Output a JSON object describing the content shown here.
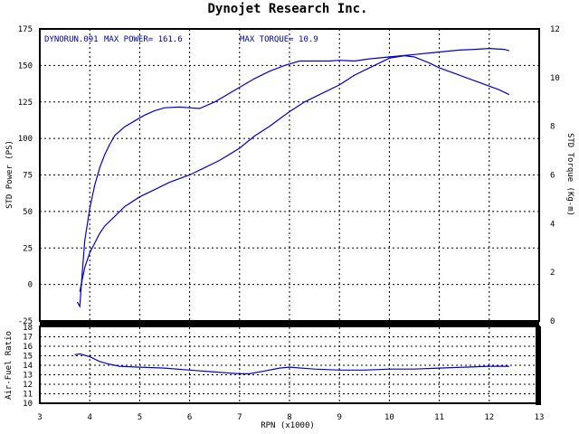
{
  "title": "Dynojet  Research  Inc.",
  "header": {
    "run": "DYNORUN.091",
    "max_power": "MAX POWER= 161.6",
    "max_torque": "MAX TORQUE= 10.9"
  },
  "colors": {
    "curve": "#0000cc",
    "axes": "#000000",
    "grid": "#000000"
  },
  "chart_data": [
    {
      "type": "line",
      "title": "Dynojet  Research  Inc.",
      "xlabel": "RPN (x1000)",
      "xlim": [
        3,
        13
      ],
      "xticks": [
        3,
        4,
        5,
        6,
        7,
        8,
        9,
        10,
        11,
        12,
        13
      ],
      "ylabel": "STD Power (PS)",
      "ylim": [
        -25,
        175
      ],
      "yticks": [
        -25,
        0,
        25,
        50,
        75,
        100,
        125,
        150,
        175
      ],
      "y2label": "STD Torque (Kg-m)",
      "y2lim": [
        0,
        12
      ],
      "y2ticks": [
        0,
        2,
        4,
        6,
        8,
        10,
        12
      ],
      "grid": true,
      "series": [
        {
          "axis": "left",
          "x": [
            3.75,
            3.8,
            3.85,
            3.9,
            4.0,
            4.1,
            4.2,
            4.3,
            4.4,
            4.5,
            4.7,
            4.9,
            5.1,
            5.3,
            5.5,
            5.8,
            6.0,
            6.2,
            6.5,
            6.8,
            7.0,
            7.3,
            7.6,
            7.9,
            8.2,
            8.5,
            8.8,
            9.0,
            9.3,
            9.6,
            9.9,
            10.2,
            10.5,
            10.8,
            11.1,
            11.4,
            11.7,
            12.0,
            12.3,
            12.4
          ],
          "y": [
            -12,
            -15,
            8,
            30,
            52,
            68,
            80,
            89,
            96,
            102,
            108,
            112,
            116,
            119,
            121,
            121.5,
            121,
            120.5,
            125,
            131,
            135,
            141,
            146,
            150,
            153,
            153,
            153,
            153.5,
            153,
            154.5,
            155.5,
            156.5,
            157.5,
            158.5,
            159.5,
            160.5,
            161,
            161.6,
            161,
            160
          ]
        },
        {
          "axis": "right",
          "x": [
            3.8,
            3.85,
            3.9,
            4.0,
            4.1,
            4.2,
            4.3,
            4.5,
            4.7,
            5.0,
            5.3,
            5.6,
            6.0,
            6.3,
            6.6,
            7.0,
            7.3,
            7.6,
            8.0,
            8.3,
            8.6,
            9.0,
            9.3,
            9.6,
            10.0,
            10.3,
            10.5,
            10.8,
            11.0,
            11.4,
            11.8,
            12.2,
            12.4
          ],
          "y": [
            1.2,
            1.7,
            2.2,
            2.8,
            3.2,
            3.6,
            3.9,
            4.3,
            4.7,
            5.1,
            5.4,
            5.7,
            6.0,
            6.3,
            6.6,
            7.1,
            7.6,
            8.0,
            8.6,
            9.0,
            9.3,
            9.7,
            10.1,
            10.4,
            10.8,
            10.9,
            10.85,
            10.6,
            10.4,
            10.1,
            9.8,
            9.5,
            9.3
          ]
        }
      ]
    },
    {
      "type": "line",
      "xlabel": "RPN (x1000)",
      "xlim": [
        3,
        13
      ],
      "ylabel": "Air-Fuel Ratio",
      "ylim": [
        10,
        18
      ],
      "yticks": [
        10,
        11,
        12,
        13,
        14,
        15,
        16,
        17,
        18
      ],
      "grid": true,
      "series": [
        {
          "x": [
            3.7,
            3.8,
            4.0,
            4.2,
            4.4,
            4.6,
            5.0,
            5.5,
            6.0,
            6.5,
            7.0,
            7.2,
            7.5,
            7.8,
            8.0,
            8.5,
            9.0,
            9.5,
            10.0,
            10.5,
            11.0,
            11.5,
            12.0,
            12.4
          ],
          "y": [
            15.1,
            15.2,
            14.9,
            14.4,
            14.1,
            13.9,
            13.8,
            13.7,
            13.5,
            13.3,
            13.1,
            13.1,
            13.4,
            13.7,
            13.8,
            13.6,
            13.5,
            13.5,
            13.6,
            13.6,
            13.7,
            13.8,
            13.9,
            13.9
          ]
        }
      ]
    }
  ]
}
